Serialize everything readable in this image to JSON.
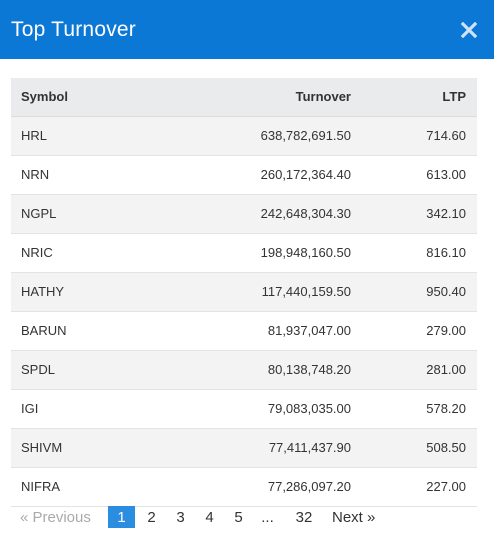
{
  "modal": {
    "title": "Top Turnover",
    "close_icon": "close-icon"
  },
  "table": {
    "headers": {
      "symbol": "Symbol",
      "turnover": "Turnover",
      "ltp": "LTP"
    },
    "rows": [
      {
        "symbol": "HRL",
        "turnover": "638,782,691.50",
        "ltp": "714.60"
      },
      {
        "symbol": "NRN",
        "turnover": "260,172,364.40",
        "ltp": "613.00"
      },
      {
        "symbol": "NGPL",
        "turnover": "242,648,304.30",
        "ltp": "342.10"
      },
      {
        "symbol": "NRIC",
        "turnover": "198,948,160.50",
        "ltp": "816.10"
      },
      {
        "symbol": "HATHY",
        "turnover": "117,440,159.50",
        "ltp": "950.40"
      },
      {
        "symbol": "BARUN",
        "turnover": "81,937,047.00",
        "ltp": "279.00"
      },
      {
        "symbol": "SPDL",
        "turnover": "80,138,748.20",
        "ltp": "281.00"
      },
      {
        "symbol": "IGI",
        "turnover": "79,083,035.00",
        "ltp": "578.20"
      },
      {
        "symbol": "SHIVM",
        "turnover": "77,411,437.90",
        "ltp": "508.50"
      },
      {
        "symbol": "NIFRA",
        "turnover": "77,286,097.20",
        "ltp": "227.00"
      }
    ]
  },
  "pagination": {
    "previous": "« Previous",
    "pages": [
      "1",
      "2",
      "3",
      "4",
      "5"
    ],
    "ellipsis": "...",
    "last": "32",
    "next": "Next »",
    "active": "1"
  },
  "colors": {
    "header_bg": "#0b78d6",
    "active_page_bg": "#2a8de0",
    "table_header_bg": "#e9ebed",
    "row_alt_bg": "#f3f3f3"
  }
}
